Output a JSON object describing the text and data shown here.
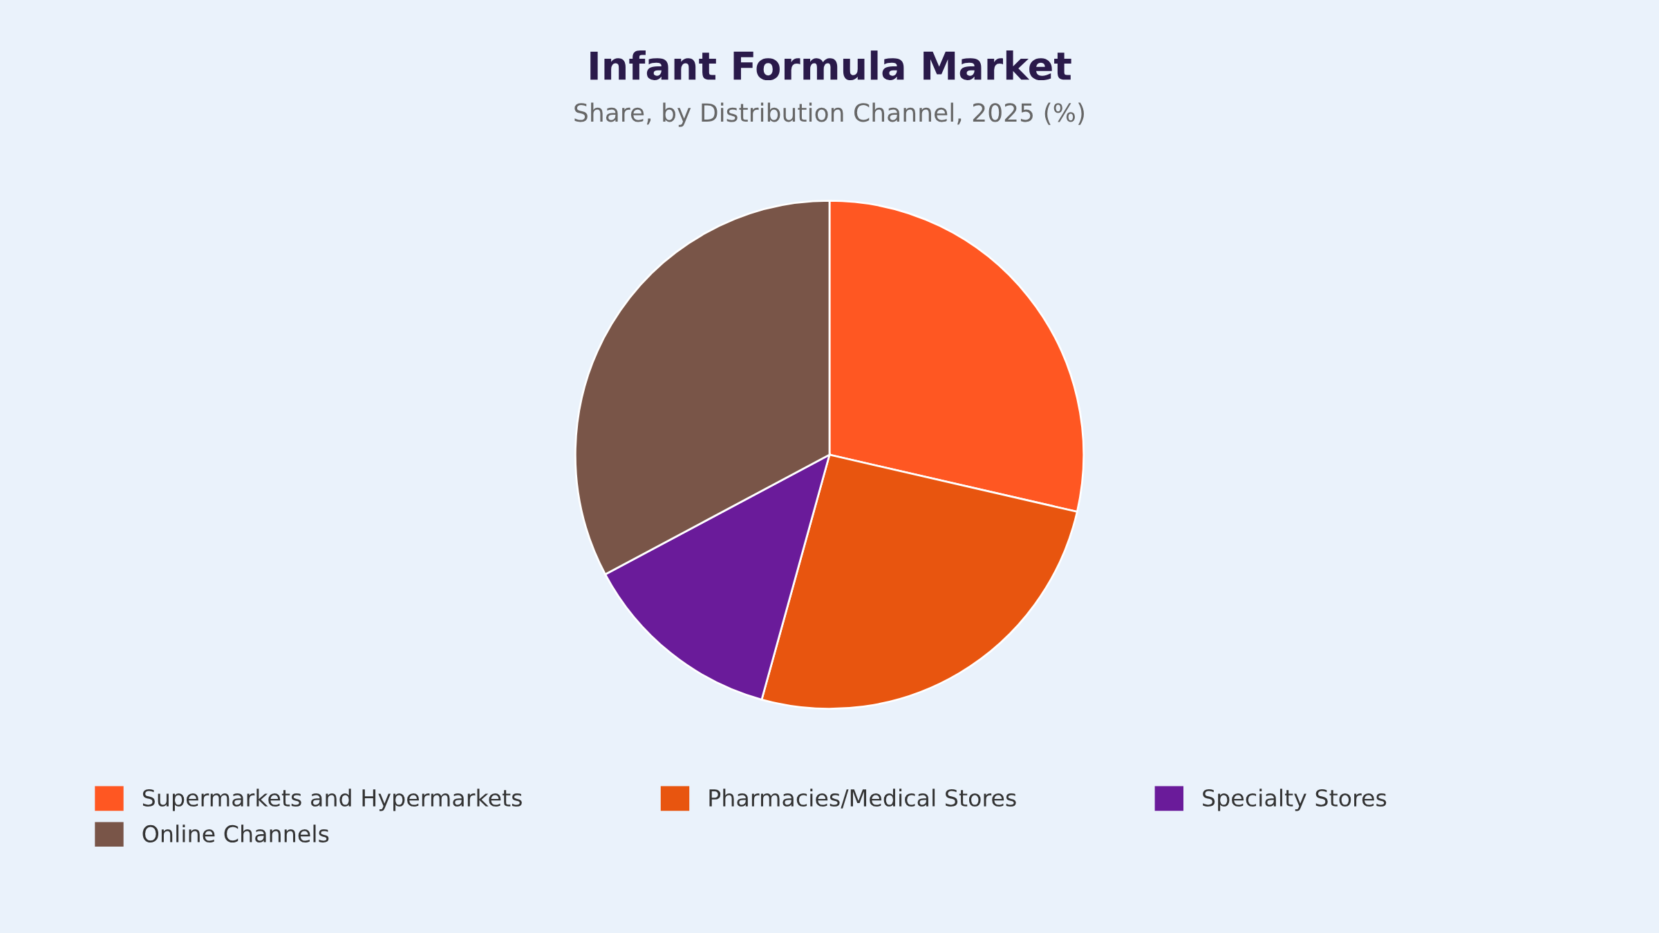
{
  "chart_data": {
    "type": "pie",
    "title": "Infant Formula Market",
    "subtitle": "Share, by Distribution Channel, 2025 (%)",
    "categories": [
      "Supermarkets and Hypermarkets",
      "Pharmacies/Medical Stores",
      "Specialty Stores",
      "Online Channels"
    ],
    "values": [
      28.6,
      25.7,
      12.9,
      32.8
    ],
    "colors": [
      "#ff5722",
      "#e8550f",
      "#6a1b9a",
      "#795548"
    ],
    "legend": "bottom"
  }
}
